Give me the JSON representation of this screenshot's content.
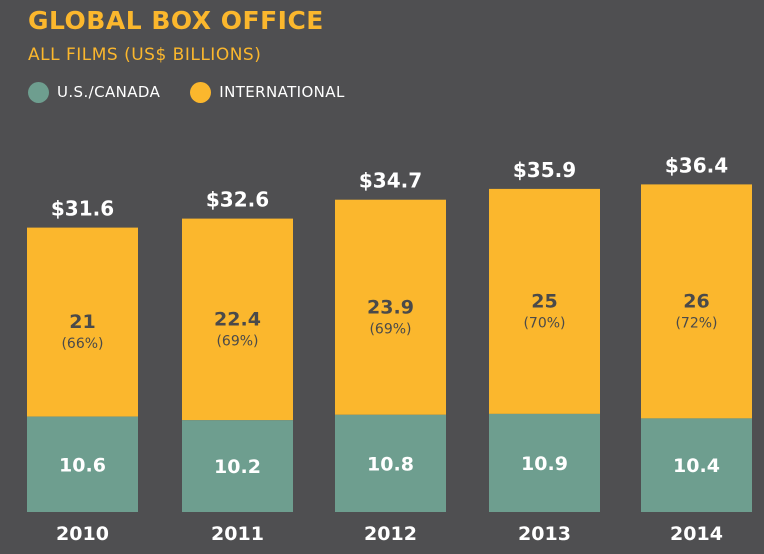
{
  "chart_data": {
    "type": "bar",
    "stacked": true,
    "title": "GLOBAL BOX OFFICE",
    "subtitle": "ALL FILMS (US$ BILLIONS)",
    "categories": [
      "2010",
      "2011",
      "2012",
      "2013",
      "2014"
    ],
    "series": [
      {
        "name": "U.S./CANADA",
        "color": "#6e9e8f",
        "values": [
          10.6,
          10.2,
          10.8,
          10.9,
          10.4
        ]
      },
      {
        "name": "INTERNATIONAL",
        "color": "#fbb72d",
        "values": [
          21,
          22.4,
          23.9,
          25,
          26
        ],
        "percents": [
          "(66%)",
          "(69%)",
          "(69%)",
          "(70%)",
          "(72%)"
        ]
      }
    ],
    "totals": [
      "$31.6",
      "$32.6",
      "$34.7",
      "$35.9",
      "$36.4"
    ],
    "legend_position": "top-left",
    "grid": false
  }
}
